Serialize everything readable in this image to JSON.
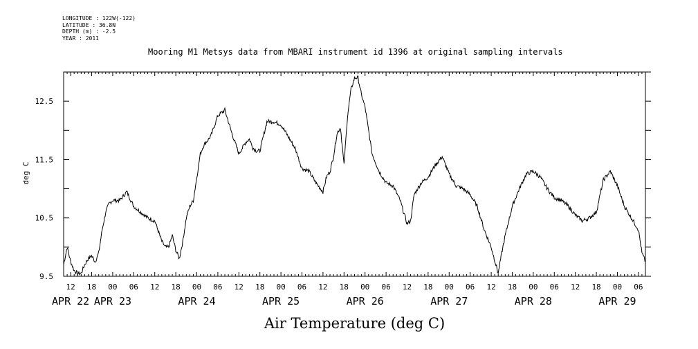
{
  "header": {
    "meta_lines": [
      "LONGITUDE : 122W(-122)",
      "LATITUDE : 36.8N",
      "DEPTH (m) : -2.5",
      "YEAR : 2011"
    ],
    "title": "Mooring M1 Metsys data from MBARI instrument id 1396 at original sampling intervals"
  },
  "chart_data": {
    "type": "line",
    "title": "Mooring M1 Metsys data from MBARI instrument id 1396 at original sampling intervals",
    "xlabel": "Air Temperature (deg C)",
    "ylabel": "deg C",
    "ylim": [
      9.5,
      13.0
    ],
    "ytick_values": [
      9.5,
      10.5,
      11.5,
      12.5
    ],
    "ytick_labels": [
      "9.5",
      "10.5",
      "11.5",
      "12.5"
    ],
    "xlim_hours_label": "2011-04-22 10:00 to 2011-04-29 08:00",
    "hour_tick_labels": [
      "12",
      "18",
      "00",
      "06",
      "12",
      "18",
      "00",
      "06",
      "12",
      "18",
      "00",
      "06",
      "12",
      "18",
      "00",
      "06",
      "12",
      "18",
      "00",
      "06",
      "12",
      "18",
      "00",
      "06",
      "12",
      "18",
      "00",
      "06",
      "12",
      "18",
      "00",
      "06"
    ],
    "day_labels": [
      "APR 22",
      "APR 23",
      "APR 24",
      "APR 25",
      "APR 26",
      "APR 27",
      "APR 28",
      "APR 29"
    ],
    "series": [
      {
        "x": [
          "2011-04-22 10:00",
          "2011-04-22 11:00",
          "2011-04-22 12:00",
          "2011-04-22 13:00",
          "2011-04-22 14:00",
          "2011-04-22 15:00",
          "2011-04-22 16:00",
          "2011-04-22 17:00",
          "2011-04-22 18:00",
          "2011-04-22 19:00",
          "2011-04-22 20:00",
          "2011-04-22 21:00",
          "2011-04-22 22:00",
          "2011-04-22 23:00",
          "2011-04-23 00:00",
          "2011-04-23 02:00",
          "2011-04-23 04:00",
          "2011-04-23 06:00",
          "2011-04-23 08:00",
          "2011-04-23 10:00",
          "2011-04-23 12:00",
          "2011-04-23 14:00",
          "2011-04-23 15:00",
          "2011-04-23 16:00",
          "2011-04-23 17:00",
          "2011-04-23 18:00",
          "2011-04-23 19:00",
          "2011-04-23 20:00",
          "2011-04-23 21:00",
          "2011-04-23 22:00",
          "2011-04-23 23:00",
          "2011-04-24 00:00",
          "2011-04-24 01:00",
          "2011-04-24 02:00",
          "2011-04-24 04:00",
          "2011-04-24 06:00",
          "2011-04-24 08:00",
          "2011-04-24 10:00",
          "2011-04-24 12:00",
          "2011-04-24 14:00",
          "2011-04-24 15:00",
          "2011-04-24 16:00",
          "2011-04-24 17:00",
          "2011-04-24 18:00",
          "2011-04-24 20:00",
          "2011-04-24 22:00",
          "2011-04-25 00:00",
          "2011-04-25 02:00",
          "2011-04-25 04:00",
          "2011-04-25 06:00",
          "2011-04-25 08:00",
          "2011-04-25 10:00",
          "2011-04-25 12:00",
          "2011-04-25 13:00",
          "2011-04-25 14:00",
          "2011-04-25 15:00",
          "2011-04-25 16:00",
          "2011-04-25 17:00",
          "2011-04-25 18:00",
          "2011-04-25 19:00",
          "2011-04-25 20:00",
          "2011-04-25 21:00",
          "2011-04-25 22:00",
          "2011-04-25 23:00",
          "2011-04-26 00:00",
          "2011-04-26 01:00",
          "2011-04-26 02:00",
          "2011-04-26 04:00",
          "2011-04-26 06:00",
          "2011-04-26 08:00",
          "2011-04-26 10:00",
          "2011-04-26 12:00",
          "2011-04-26 13:00",
          "2011-04-26 14:00",
          "2011-04-26 16:00",
          "2011-04-26 18:00",
          "2011-04-26 20:00",
          "2011-04-26 22:00",
          "2011-04-27 00:00",
          "2011-04-27 02:00",
          "2011-04-27 04:00",
          "2011-04-27 06:00",
          "2011-04-27 08:00",
          "2011-04-27 10:00",
          "2011-04-27 12:00",
          "2011-04-27 14:00",
          "2011-04-27 15:00",
          "2011-04-27 16:00",
          "2011-04-27 18:00",
          "2011-04-27 20:00",
          "2011-04-27 22:00",
          "2011-04-28 00:00",
          "2011-04-28 02:00",
          "2011-04-28 04:00",
          "2011-04-28 06:00",
          "2011-04-28 08:00",
          "2011-04-28 10:00",
          "2011-04-28 12:00",
          "2011-04-28 14:00",
          "2011-04-28 16:00",
          "2011-04-28 18:00",
          "2011-04-28 20:00",
          "2011-04-28 22:00",
          "2011-04-29 00:00",
          "2011-04-29 02:00",
          "2011-04-29 04:00",
          "2011-04-29 06:00",
          "2011-04-29 07:00",
          "2011-04-29 08:00"
        ],
        "values": [
          9.7,
          10.0,
          9.75,
          9.6,
          9.55,
          9.55,
          9.7,
          9.8,
          9.85,
          9.75,
          9.9,
          10.3,
          10.6,
          10.75,
          10.8,
          10.8,
          10.95,
          10.7,
          10.6,
          10.5,
          10.45,
          10.1,
          10.0,
          10.0,
          10.2,
          9.95,
          9.8,
          10.1,
          10.5,
          10.7,
          10.8,
          11.2,
          11.6,
          11.75,
          11.9,
          12.25,
          12.35,
          11.95,
          11.6,
          11.8,
          11.85,
          11.7,
          11.65,
          11.65,
          12.15,
          12.15,
          12.1,
          11.9,
          11.7,
          11.35,
          11.3,
          11.1,
          10.95,
          11.2,
          11.3,
          11.55,
          11.95,
          12.05,
          11.4,
          12.25,
          12.7,
          12.9,
          12.9,
          12.6,
          12.4,
          12.0,
          11.6,
          11.3,
          11.1,
          11.05,
          10.8,
          10.4,
          10.45,
          10.9,
          11.1,
          11.2,
          11.4,
          11.55,
          11.25,
          11.05,
          11.0,
          10.9,
          10.7,
          10.3,
          10.0,
          9.55,
          9.9,
          10.2,
          10.7,
          11.0,
          11.25,
          11.3,
          11.2,
          11.0,
          10.85,
          10.8,
          10.7,
          10.55,
          10.45,
          10.5,
          10.6,
          11.15,
          11.3,
          11.05,
          10.7,
          10.5,
          10.3,
          9.9,
          9.75
        ]
      }
    ]
  }
}
